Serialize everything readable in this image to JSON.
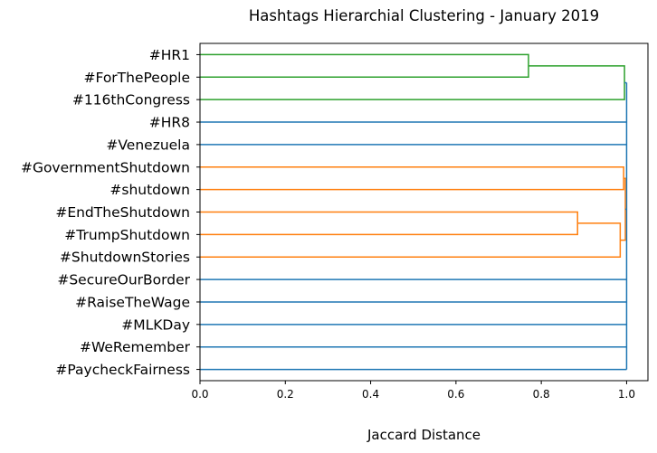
{
  "chart_data": {
    "type": "dendrogram",
    "title": "Hashtags Hierarchial Clustering - January 2019",
    "xlabel": "Jaccard Distance",
    "ylabel": "",
    "xlim": [
      0,
      1.05
    ],
    "xticks": [
      "0.0",
      "0.2",
      "0.4",
      "0.6",
      "0.8",
      "1.0"
    ],
    "grid": false,
    "orientation": "horizontal",
    "leaves": [
      "#HR1",
      "#ForThePeople",
      "#116thCongress",
      "#HR8",
      "#Venezuela",
      "#GovernmentShutdown",
      "#shutdown",
      "#EndTheShutdown",
      "#TrumpShutdown",
      "#ShutdownStories",
      "#SecureOurBorder",
      "#RaiseTheWage",
      "#MLKDay",
      "#WeRemember",
      "#PaycheckFairness"
    ],
    "merges": [
      {
        "children": [
          "#HR1",
          "#ForThePeople"
        ],
        "distance": 0.77,
        "color": "#2ca02c"
      },
      {
        "children": [
          "#HR1+#ForThePeople",
          "#116thCongress"
        ],
        "distance": 0.995,
        "color": "#2ca02c"
      },
      {
        "children": [
          "#EndTheShutdown",
          "#TrumpShutdown"
        ],
        "distance": 0.885,
        "color": "#ff7f0e"
      },
      {
        "children": [
          "#EndTheShutdown+#TrumpShutdown",
          "#ShutdownStories"
        ],
        "distance": 0.985,
        "color": "#ff7f0e"
      },
      {
        "children": [
          "#GovernmentShutdown",
          "#shutdown"
        ],
        "distance": 0.993,
        "color": "#ff7f0e"
      },
      {
        "children": [
          "#GovernmentShutdown+#shutdown",
          "#EndTheShutdown+#TrumpShutdown+#ShutdownStories"
        ],
        "distance": 0.997,
        "color": "#ff7f0e"
      },
      {
        "children": [
          "all remaining"
        ],
        "distance": 1.0,
        "color": "#1f77b4"
      }
    ],
    "colors": {
      "cluster_1": "#2ca02c",
      "cluster_2": "#ff7f0e",
      "above_threshold": "#1f77b4"
    }
  }
}
